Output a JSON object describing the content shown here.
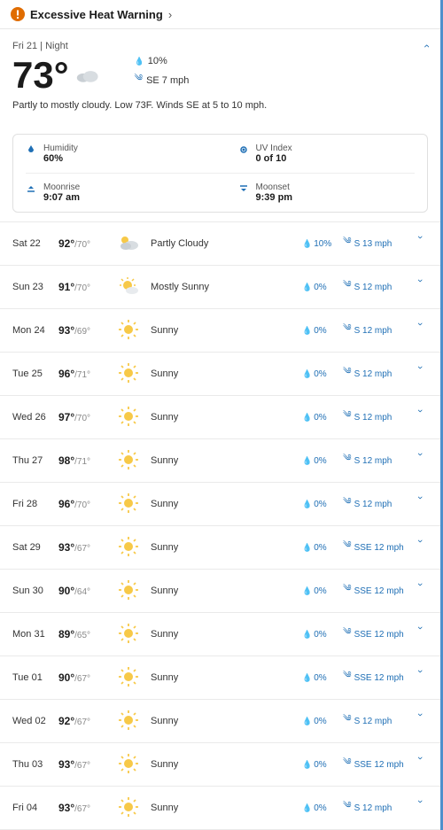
{
  "alert": {
    "text": "Excessive Heat Warning"
  },
  "tonight": {
    "label": "Fri 21 | Night",
    "temp": "73°",
    "precip": "10%",
    "wind": "SE 7 mph",
    "narrative": "Partly to mostly cloudy. Low 73F. Winds SE at 5 to 10 mph."
  },
  "details": {
    "humidity": {
      "label": "Humidity",
      "value": "60%"
    },
    "uv": {
      "label": "UV Index",
      "value": "0 of 10"
    },
    "moonrise": {
      "label": "Moonrise",
      "value": "9:07 am"
    },
    "moonset": {
      "label": "Moonset",
      "value": "9:39 pm"
    }
  },
  "days": [
    {
      "day": "Sat 22",
      "hi": "92°",
      "lo": "/70°",
      "icon": "partly",
      "cond": "Partly Cloudy",
      "precip": "10%",
      "wind": "S 13 mph"
    },
    {
      "day": "Sun 23",
      "hi": "91°",
      "lo": "/70°",
      "icon": "mostly",
      "cond": "Mostly Sunny",
      "precip": "0%",
      "wind": "S 12 mph"
    },
    {
      "day": "Mon 24",
      "hi": "93°",
      "lo": "/69°",
      "icon": "sun",
      "cond": "Sunny",
      "precip": "0%",
      "wind": "S 12 mph"
    },
    {
      "day": "Tue 25",
      "hi": "96°",
      "lo": "/71°",
      "icon": "sun",
      "cond": "Sunny",
      "precip": "0%",
      "wind": "S 12 mph"
    },
    {
      "day": "Wed 26",
      "hi": "97°",
      "lo": "/70°",
      "icon": "sun",
      "cond": "Sunny",
      "precip": "0%",
      "wind": "S 12 mph"
    },
    {
      "day": "Thu 27",
      "hi": "98°",
      "lo": "/71°",
      "icon": "sun",
      "cond": "Sunny",
      "precip": "0%",
      "wind": "S 12 mph"
    },
    {
      "day": "Fri 28",
      "hi": "96°",
      "lo": "/70°",
      "icon": "sun",
      "cond": "Sunny",
      "precip": "0%",
      "wind": "S 12 mph"
    },
    {
      "day": "Sat 29",
      "hi": "93°",
      "lo": "/67°",
      "icon": "sun",
      "cond": "Sunny",
      "precip": "0%",
      "wind": "SSE 12 mph"
    },
    {
      "day": "Sun 30",
      "hi": "90°",
      "lo": "/64°",
      "icon": "sun",
      "cond": "Sunny",
      "precip": "0%",
      "wind": "SSE 12 mph"
    },
    {
      "day": "Mon 31",
      "hi": "89°",
      "lo": "/65°",
      "icon": "sun",
      "cond": "Sunny",
      "precip": "0%",
      "wind": "SSE 12 mph"
    },
    {
      "day": "Tue 01",
      "hi": "90°",
      "lo": "/67°",
      "icon": "sun",
      "cond": "Sunny",
      "precip": "0%",
      "wind": "SSE 12 mph"
    },
    {
      "day": "Wed 02",
      "hi": "92°",
      "lo": "/67°",
      "icon": "sun",
      "cond": "Sunny",
      "precip": "0%",
      "wind": "S 12 mph"
    },
    {
      "day": "Thu 03",
      "hi": "93°",
      "lo": "/67°",
      "icon": "sun",
      "cond": "Sunny",
      "precip": "0%",
      "wind": "SSE 12 mph"
    },
    {
      "day": "Fri 04",
      "hi": "93°",
      "lo": "/67°",
      "icon": "sun",
      "cond": "Sunny",
      "precip": "0%",
      "wind": "S 12 mph"
    }
  ],
  "colors": {
    "accent": "#1f6fb5",
    "alert": "#e06c00",
    "sun": "#f7c948",
    "cloud": "#bfc6cc"
  }
}
